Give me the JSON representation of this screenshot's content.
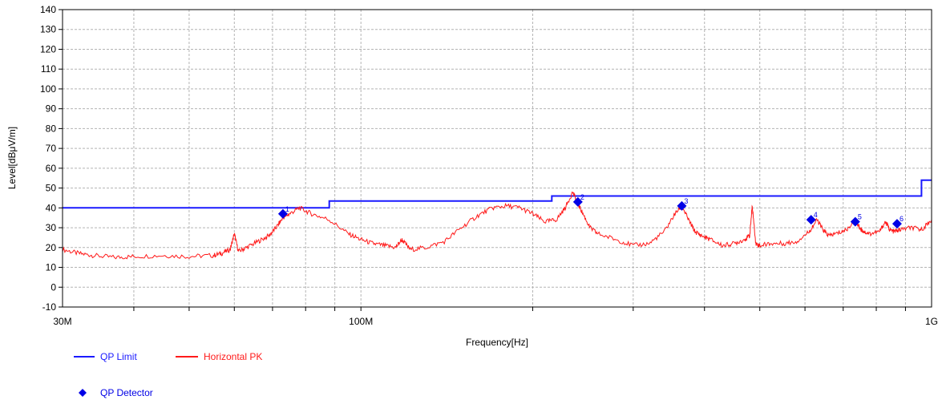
{
  "chart_data": {
    "type": "line",
    "xlabel": "Frequency[Hz]",
    "ylabel": "Level[dBμV/m]",
    "x_scale": "log",
    "xlim": [
      30000000,
      1000000000
    ],
    "ylim": [
      -10,
      140
    ],
    "grid": true,
    "legend": "bottom-left",
    "x_tick_labels": [
      {
        "value": 30000000,
        "label": "30M"
      },
      {
        "value": 100000000,
        "label": "100M"
      },
      {
        "value": 1000000000,
        "label": "1G"
      }
    ],
    "y_ticks": [
      -10,
      0,
      10,
      20,
      30,
      40,
      50,
      60,
      70,
      80,
      90,
      100,
      110,
      120,
      130,
      140
    ],
    "series": [
      {
        "name": "QP Limit",
        "color": "#1a1aff",
        "step": true,
        "x": [
          30000000,
          88000000,
          88000000,
          216000000,
          216000000,
          960000000,
          960000000,
          1000000000
        ],
        "y": [
          40,
          40,
          43.5,
          43.5,
          46,
          46,
          54,
          54
        ]
      },
      {
        "name": "Horizontal PK",
        "color": "#ff1a1a",
        "x": [
          30000000,
          32000000,
          34000000,
          37000000,
          40000000,
          45000000,
          50000000,
          55000000,
          57000000,
          59000000,
          60000000,
          61000000,
          63000000,
          66000000,
          69000000,
          71000000,
          73000000,
          75000000,
          78000000,
          82000000,
          88000000,
          95000000,
          100000000,
          105000000,
          110000000,
          115000000,
          118000000,
          122000000,
          130000000,
          140000000,
          150000000,
          160000000,
          170000000,
          180000000,
          190000000,
          200000000,
          210000000,
          220000000,
          228000000,
          235000000,
          240000000,
          245000000,
          252000000,
          260000000,
          280000000,
          300000000,
          320000000,
          340000000,
          355000000,
          365000000,
          375000000,
          385000000,
          395000000,
          410000000,
          430000000,
          450000000,
          470000000,
          480000000,
          485000000,
          492000000,
          500000000,
          520000000,
          550000000,
          580000000,
          610000000,
          630000000,
          645000000,
          660000000,
          680000000,
          710000000,
          735000000,
          748000000,
          760000000,
          780000000,
          810000000,
          830000000,
          845000000,
          860000000,
          880000000,
          920000000,
          960000000,
          1000000000
        ],
        "y": [
          19,
          17,
          16,
          15,
          15.5,
          16,
          15.5,
          16,
          17,
          19,
          27,
          18,
          20,
          23,
          26,
          30,
          35,
          37,
          40,
          37,
          34,
          27,
          24,
          22,
          21,
          20,
          24,
          19,
          20,
          23,
          30,
          36,
          40,
          41,
          40,
          37,
          33,
          34,
          40,
          48,
          42,
          37,
          30,
          27,
          24,
          21,
          22,
          28,
          37,
          41,
          34,
          28,
          26,
          24,
          21,
          22,
          24,
          26,
          41,
          22,
          21,
          22,
          22,
          23,
          28,
          34,
          29,
          26,
          27,
          29,
          34,
          30,
          28,
          27,
          28,
          33,
          29,
          28,
          29,
          30,
          29,
          34
        ]
      }
    ],
    "markers": {
      "name": "QP Detector",
      "color": "#0000e6",
      "points": [
        {
          "label": "1",
          "x": 73000000,
          "y": 37
        },
        {
          "label": "2",
          "x": 240000000,
          "y": 43
        },
        {
          "label": "3",
          "x": 365000000,
          "y": 41
        },
        {
          "label": "4",
          "x": 615000000,
          "y": 34
        },
        {
          "label": "5",
          "x": 735000000,
          "y": 33
        },
        {
          "label": "6",
          "x": 870000000,
          "y": 32
        }
      ]
    }
  }
}
